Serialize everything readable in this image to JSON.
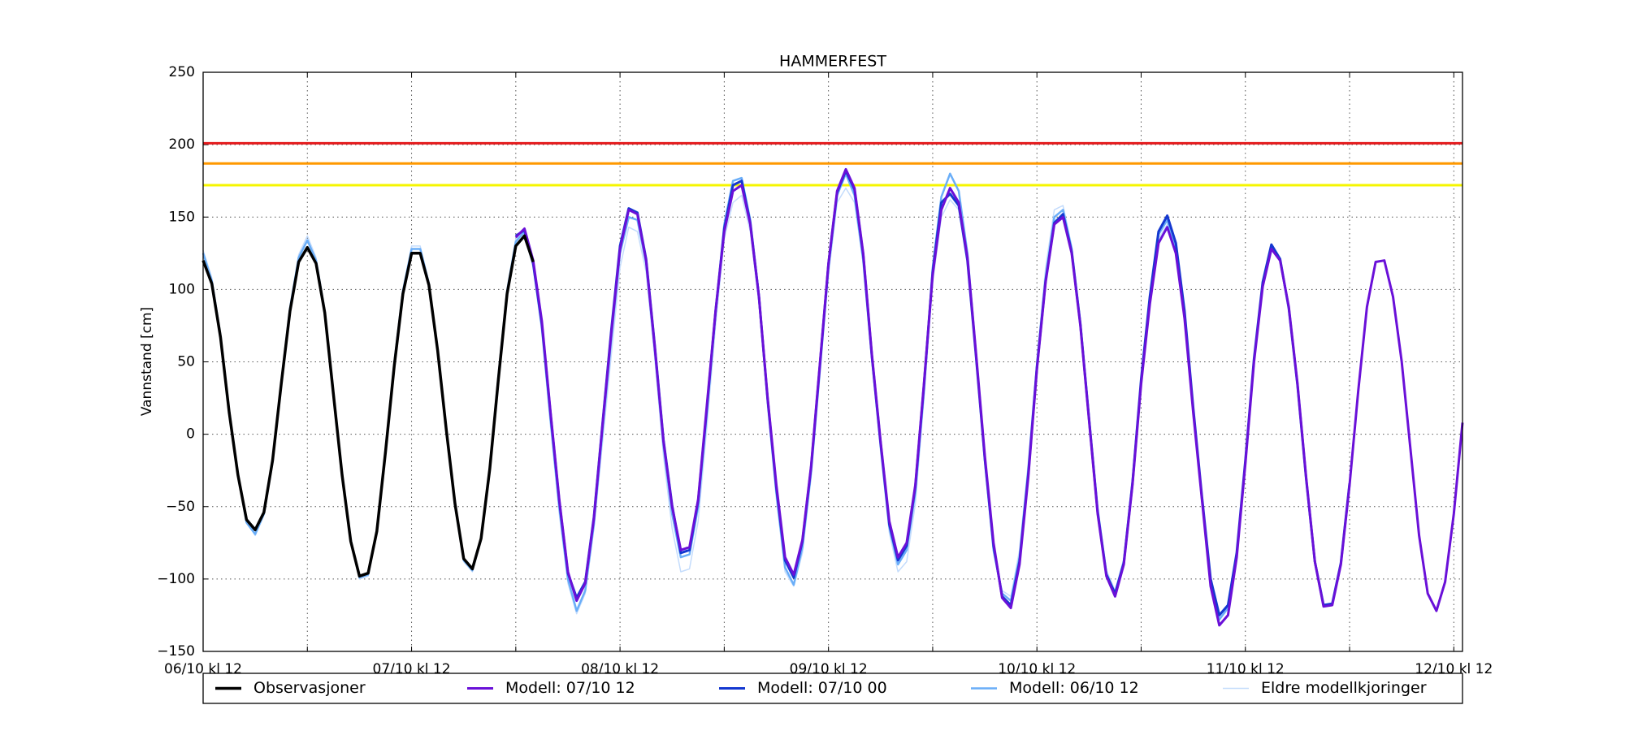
{
  "chart_data": {
    "type": "line",
    "title": "HAMMERFEST",
    "y_label": "Vannstand [cm]",
    "categories": [
      "06/10 kl 12",
      null,
      null,
      null,
      null,
      null,
      null,
      null,
      null,
      null,
      null,
      null,
      null,
      null,
      null,
      null,
      null,
      null,
      null,
      null,
      null,
      null,
      null,
      null,
      "07/10 kl 12",
      null,
      null,
      null,
      null,
      null,
      null,
      null,
      null,
      null,
      null,
      null,
      null,
      null,
      null,
      null,
      null,
      null,
      null,
      null,
      null,
      null,
      null,
      null,
      "08/10 kl 12",
      null,
      null,
      null,
      null,
      null,
      null,
      null,
      null,
      null,
      null,
      null,
      null,
      null,
      null,
      null,
      null,
      null,
      null,
      null,
      null,
      null,
      null,
      null,
      "09/10 kl 12",
      null,
      null,
      null,
      null,
      null,
      null,
      null,
      null,
      null,
      null,
      null,
      null,
      null,
      null,
      null,
      null,
      null,
      null,
      null,
      null,
      null,
      null,
      null,
      "10/10 kl 12",
      null,
      null,
      null,
      null,
      null,
      null,
      null,
      null,
      null,
      null,
      null,
      null,
      null,
      null,
      null,
      null,
      null,
      null,
      null,
      null,
      null,
      null,
      null,
      "11/10 kl 12",
      null,
      null,
      null,
      null,
      null,
      null,
      null,
      null,
      null,
      null,
      null,
      null,
      null,
      null,
      null,
      null,
      null,
      null,
      null,
      null,
      null,
      null,
      null,
      "12/10 kl 12",
      null
    ],
    "series": [
      {
        "name": "Observasjoner",
        "color": "#000000",
        "width": 3.5,
        "values": [
          120,
          104,
          67,
          15,
          -28,
          -59,
          -66,
          -54,
          -18,
          35,
          85,
          119,
          129,
          118,
          84,
          28,
          -28,
          -74,
          -98,
          -96,
          -67,
          -12,
          47,
          97,
          125,
          125,
          103,
          58,
          3,
          -48,
          -86,
          -93,
          -72,
          -24,
          38,
          97,
          130,
          137,
          119,
          null,
          null,
          null,
          null,
          null,
          null,
          null,
          null,
          null,
          null,
          null,
          null,
          null,
          null,
          null,
          null,
          null,
          null,
          null,
          null,
          null,
          null,
          null,
          null,
          null,
          null,
          null,
          null,
          null,
          null,
          null,
          null,
          null,
          null,
          null,
          null,
          null,
          null,
          null,
          null,
          null,
          null,
          null,
          null,
          null,
          null,
          null,
          null,
          null,
          null,
          null,
          null,
          null,
          null,
          null,
          null,
          null,
          null,
          null,
          null,
          null,
          null,
          null,
          null,
          null,
          null,
          null,
          null,
          null,
          null,
          null,
          null,
          null,
          null,
          null,
          null,
          null,
          null,
          null,
          null,
          null,
          null,
          null,
          null,
          null,
          null,
          null,
          null,
          null,
          null,
          null,
          null,
          null,
          null,
          null,
          null,
          null,
          null,
          null,
          null,
          null,
          null,
          null,
          null,
          null,
          null,
          null
        ]
      },
      {
        "name": "Modell: 07/10 12",
        "color": "#6a10d8",
        "width": 3,
        "values": [
          null,
          null,
          null,
          null,
          null,
          null,
          null,
          null,
          null,
          null,
          null,
          null,
          null,
          null,
          null,
          null,
          null,
          null,
          null,
          null,
          null,
          null,
          null,
          null,
          null,
          null,
          null,
          null,
          null,
          null,
          null,
          null,
          null,
          null,
          null,
          null,
          136,
          142,
          120,
          78,
          15,
          -45,
          -95,
          -115,
          -103,
          -58,
          7,
          70,
          128,
          155,
          152,
          120,
          60,
          -5,
          -50,
          -80,
          -78,
          -45,
          20,
          85,
          140,
          168,
          172,
          145,
          95,
          25,
          -35,
          -85,
          -97,
          -73,
          -22,
          48,
          118,
          168,
          183,
          170,
          125,
          55,
          -5,
          -60,
          -85,
          -75,
          -35,
          35,
          110,
          155,
          170,
          160,
          122,
          55,
          -15,
          -75,
          -113,
          -120,
          -90,
          -30,
          45,
          105,
          145,
          150,
          125,
          75,
          10,
          -55,
          -98,
          -112,
          -90,
          -35,
          35,
          90,
          132,
          143,
          125,
          80,
          15,
          -45,
          -105,
          -132,
          -125,
          -85,
          -20,
          50,
          102,
          128,
          120,
          88,
          35,
          -30,
          -88,
          -119,
          -118,
          -90,
          -35,
          30,
          88,
          119,
          120,
          95,
          50,
          -10,
          -70,
          -110,
          -122,
          -102,
          -55,
          8
        ]
      },
      {
        "name": "Modell: 07/10 00",
        "color": "#1438d0",
        "width": 3,
        "values": [
          null,
          null,
          null,
          null,
          null,
          null,
          null,
          null,
          null,
          null,
          null,
          null,
          null,
          null,
          null,
          null,
          null,
          null,
          null,
          null,
          null,
          null,
          null,
          null,
          null,
          null,
          null,
          null,
          null,
          null,
          null,
          null,
          null,
          null,
          null,
          null,
          137,
          141,
          118,
          76,
          14,
          -46,
          -96,
          -113,
          -102,
          -57,
          8,
          72,
          130,
          156,
          153,
          121,
          61,
          -4,
          -49,
          -82,
          -80,
          -46,
          18,
          85,
          142,
          172,
          175,
          146,
          95,
          24,
          -37,
          -87,
          -99,
          -74,
          -23,
          47,
          118,
          167,
          182,
          169,
          124,
          54,
          -6,
          -62,
          -87,
          -77,
          -36,
          34,
          112,
          160,
          166,
          158,
          120,
          53,
          -17,
          -77,
          -112,
          -118,
          -88,
          -28,
          46,
          106,
          146,
          152,
          126,
          76,
          11,
          -54,
          -97,
          -110,
          -89,
          -34,
          38,
          95,
          140,
          151,
          132,
          85,
          18,
          -43,
          -100,
          -125,
          -118,
          -82,
          -18,
          52,
          105,
          131,
          121,
          87,
          34,
          -31,
          -88,
          -118,
          -117,
          -89,
          -34,
          null,
          null,
          null,
          null,
          null,
          null,
          null,
          null,
          null,
          null,
          null,
          null,
          null
        ]
      },
      {
        "name": "Modell: 06/10 12",
        "color": "#6aaef8",
        "width": 2.5,
        "values": [
          125,
          106,
          68,
          16,
          -27,
          -61,
          -69,
          -55,
          -19,
          36,
          87,
          122,
          134,
          120,
          85,
          29,
          -27,
          -73,
          -99,
          -97,
          -66,
          -11,
          49,
          99,
          128,
          128,
          104,
          58,
          2,
          -49,
          -87,
          -94,
          -72,
          -23,
          40,
          99,
          133,
          140,
          118,
          74,
          10,
          -50,
          -100,
          -122,
          -108,
          -62,
          3,
          66,
          125,
          150,
          148,
          118,
          58,
          -8,
          -55,
          -85,
          -83,
          -50,
          15,
          83,
          145,
          175,
          177,
          148,
          96,
          23,
          -40,
          -92,
          -104,
          -78,
          -26,
          44,
          115,
          165,
          180,
          165,
          120,
          52,
          -8,
          -64,
          -90,
          -80,
          -40,
          30,
          115,
          164,
          180,
          168,
          125,
          55,
          -18,
          -80,
          -110,
          -115,
          -85,
          -25,
          48,
          108,
          150,
          155,
          128,
          77,
          12,
          -52,
          -96,
          -110,
          -88,
          -32,
          37,
          93,
          138,
          148,
          128,
          83,
          17,
          -45,
          -102,
          -128,
          -120,
          -83,
          -19,
          null,
          null,
          null,
          null,
          null,
          null,
          null,
          null,
          null,
          null,
          null,
          null,
          null,
          null,
          null,
          null,
          null,
          null,
          null,
          null,
          null,
          null,
          null,
          null,
          null
        ]
      },
      {
        "name": "Eldre modellkjoringer",
        "color": "#c4dcfc",
        "width": 1.5,
        "values": [
          127,
          108,
          70,
          18,
          -25,
          -60,
          -70,
          -56,
          -20,
          37,
          88,
          124,
          137,
          122,
          86,
          30,
          -26,
          -72,
          -100,
          -98,
          -65,
          -10,
          50,
          100,
          130,
          130,
          105,
          59,
          2,
          -50,
          -88,
          -95,
          -73,
          -22,
          41,
          100,
          135,
          138,
          115,
          70,
          5,
          -55,
          -103,
          -124,
          -110,
          -65,
          -5,
          55,
          115,
          143,
          140,
          112,
          52,
          -15,
          -65,
          -95,
          -93,
          -60,
          5,
          75,
          135,
          160,
          165,
          140,
          90,
          18,
          -45,
          -95,
          -105,
          -82,
          -30,
          40,
          110,
          160,
          170,
          160,
          118,
          50,
          -12,
          -68,
          -95,
          -88,
          -48,
          25,
          105,
          150,
          162,
          155,
          120,
          50,
          -22,
          -82,
          -108,
          -112,
          -80,
          -20,
          52,
          115,
          155,
          158,
          130,
          78,
          12,
          -50,
          -94,
          -108,
          -86,
          -30,
          38,
          92,
          135,
          145,
          125,
          80,
          15,
          null,
          null,
          null,
          null,
          null,
          null,
          null,
          null,
          null,
          null,
          null,
          null,
          null,
          null,
          null,
          null,
          null,
          null,
          null,
          null,
          null,
          null,
          null,
          null,
          null,
          null,
          null,
          null,
          null,
          null,
          null
        ]
      }
    ],
    "reference_lines": [
      {
        "value": 201,
        "color": "#e41a1c"
      },
      {
        "value": 187,
        "color": "#ff9900"
      },
      {
        "value": 172,
        "color": "#f5f500"
      }
    ],
    "ylim": [
      -150,
      250
    ],
    "yticks": [
      {
        "value": -150,
        "label": "−150"
      },
      {
        "value": -100,
        "label": "−100"
      },
      {
        "value": -50,
        "label": "−50"
      },
      0,
      50,
      100,
      150,
      200,
      250
    ],
    "grid": true,
    "legend": "bottom"
  }
}
